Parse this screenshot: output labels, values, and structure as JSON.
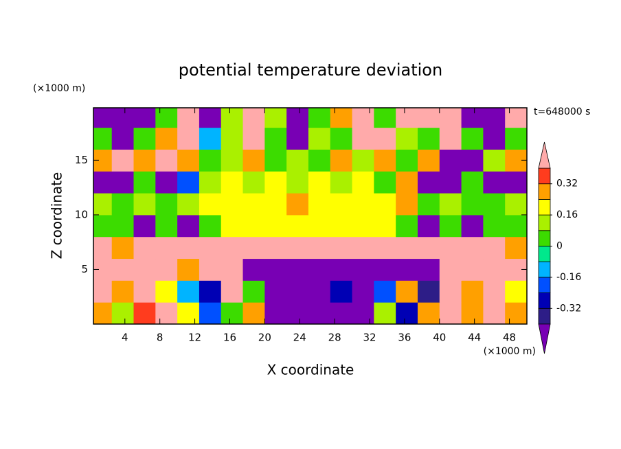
{
  "chart_data": {
    "type": "contour",
    "title": "potential temperature deviation",
    "x_label": "X coordinate",
    "y_label": "Z coordinate",
    "x_units": "(×1000 m)",
    "y_units": "(×1000 m)",
    "annotation": "t=648000 s",
    "xlim": [
      0.4,
      50
    ],
    "ylim": [
      0,
      19.8
    ],
    "xticks": [
      4,
      8,
      12,
      16,
      20,
      24,
      28,
      32,
      36,
      40,
      44,
      48
    ],
    "yticks": [
      5,
      10,
      15
    ],
    "x": [
      1.25,
      3.75,
      6.25,
      8.75,
      11.25,
      13.75,
      16.25,
      18.75,
      21.25,
      23.75,
      26.25,
      28.75,
      31.25,
      33.75,
      36.25,
      38.75,
      41.25,
      43.75,
      46.25,
      48.75
    ],
    "y": [
      1,
      3,
      5,
      7,
      9,
      11,
      13,
      15,
      17,
      19
    ],
    "values": [
      [
        0.3,
        0.1,
        0.35,
        0.45,
        0.2,
        -0.2,
        0.05,
        0.3,
        -0.45,
        -0.45,
        -0.45,
        -0.45,
        -0.45,
        0.1,
        -0.3,
        0.3,
        0.45,
        0.3,
        0.45,
        0.3
      ],
      [
        0.45,
        0.3,
        0.45,
        0.2,
        -0.1,
        -0.3,
        0.45,
        0.0,
        -0.45,
        -0.45,
        -0.45,
        -0.3,
        -0.45,
        -0.2,
        0.3,
        -0.35,
        0.45,
        0.3,
        0.45,
        0.2
      ],
      [
        0.45,
        0.45,
        0.45,
        0.45,
        0.3,
        0.45,
        0.45,
        -0.45,
        -0.45,
        -0.45,
        -0.45,
        -0.45,
        -0.45,
        -0.45,
        -0.45,
        -0.45,
        0.45,
        0.45,
        0.45,
        0.45
      ],
      [
        0.45,
        0.3,
        0.45,
        0.45,
        0.45,
        0.45,
        0.45,
        0.45,
        0.45,
        0.45,
        0.45,
        0.45,
        0.45,
        0.45,
        0.45,
        0.45,
        0.45,
        0.45,
        0.45,
        0.3
      ],
      [
        0.05,
        0.05,
        -0.45,
        0.05,
        -0.45,
        0.05,
        0.2,
        0.2,
        0.2,
        0.2,
        0.2,
        0.2,
        0.2,
        0.2,
        0.05,
        -0.45,
        0.05,
        -0.45,
        0.05,
        0.05
      ],
      [
        0.1,
        0.05,
        0.1,
        0.05,
        0.1,
        0.2,
        0.2,
        0.2,
        0.2,
        0.3,
        0.2,
        0.2,
        0.2,
        0.2,
        0.3,
        0.05,
        0.1,
        0.05,
        0.05,
        0.1
      ],
      [
        -0.45,
        -0.45,
        0.05,
        -0.45,
        -0.2,
        0.1,
        0.2,
        0.1,
        0.2,
        0.1,
        0.2,
        0.1,
        0.2,
        0.05,
        0.3,
        -0.45,
        -0.45,
        0.05,
        -0.45,
        -0.45
      ],
      [
        0.3,
        0.45,
        0.3,
        0.45,
        0.3,
        0.05,
        0.1,
        0.3,
        0.05,
        0.1,
        0.05,
        0.3,
        0.1,
        0.3,
        0.05,
        0.3,
        -0.45,
        -0.45,
        0.1,
        0.3
      ],
      [
        0.05,
        -0.45,
        0.05,
        0.3,
        0.45,
        -0.1,
        0.1,
        0.45,
        0.05,
        -0.45,
        0.1,
        0.05,
        0.45,
        0.45,
        0.1,
        0.05,
        0.45,
        0.05,
        -0.45,
        0.05
      ],
      [
        -0.45,
        -0.45,
        -0.45,
        0.05,
        0.45,
        -0.45,
        0.1,
        0.45,
        0.1,
        -0.45,
        0.05,
        0.3,
        0.45,
        0.05,
        0.45,
        0.45,
        0.45,
        -0.45,
        -0.45,
        0.45
      ]
    ],
    "colorbar": {
      "levels": [
        -0.4,
        -0.32,
        -0.24,
        -0.16,
        -0.08,
        0,
        0.08,
        0.16,
        0.24,
        0.32,
        0.4
      ],
      "colors": [
        "#2d1d87",
        "#0000b4",
        "#0050ff",
        "#00b4ff",
        "#00e88c",
        "#3cdc00",
        "#aaf000",
        "#ffff00",
        "#ffa000",
        "#ff3c1e"
      ],
      "under_color": "#7800b4",
      "over_color": "#ffaaaa",
      "ticks": [
        0.32,
        0.16,
        0,
        -0.16,
        -0.32
      ]
    }
  }
}
